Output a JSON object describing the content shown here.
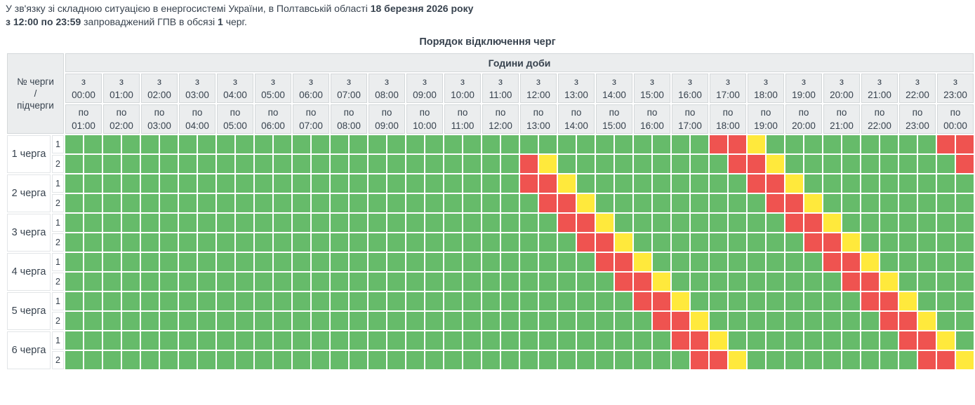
{
  "intro": {
    "part1": "У зв'язку зі складною ситуацією в енергосистемі України, в Полтавській області",
    "date_bold": "18 березня 2026 року",
    "time_bold": "з 12:00 по 23:59",
    "part2": "запроваджений ГПВ в обсязі",
    "count_bold": "1",
    "part3": "черг."
  },
  "title": "Порядок відключення черг",
  "colors": {
    "power_on": "#66bb6a",
    "outage": "#ef5350",
    "possible_outage": "#ffe93c",
    "header_bg": "#ebedee",
    "text": "#37424e"
  },
  "cell_code_map": {
    "g": "power_on",
    "r": "outage",
    "y": "possible_outage"
  },
  "table": {
    "corner": {
      "line1": "№ черги",
      "line2": "/",
      "line3": "підчерги"
    },
    "hours_header": "Години доби",
    "from_label": "з",
    "to_label": "по",
    "hours_from": [
      "00:00",
      "01:00",
      "02:00",
      "03:00",
      "04:00",
      "05:00",
      "06:00",
      "07:00",
      "08:00",
      "09:00",
      "10:00",
      "11:00",
      "12:00",
      "13:00",
      "14:00",
      "15:00",
      "16:00",
      "17:00",
      "18:00",
      "19:00",
      "20:00",
      "21:00",
      "22:00",
      "23:00"
    ],
    "hours_to": [
      "01:00",
      "02:00",
      "03:00",
      "04:00",
      "05:00",
      "06:00",
      "07:00",
      "08:00",
      "09:00",
      "10:00",
      "11:00",
      "12:00",
      "13:00",
      "14:00",
      "15:00",
      "16:00",
      "17:00",
      "18:00",
      "19:00",
      "20:00",
      "21:00",
      "22:00",
      "23:00",
      "00:00"
    ],
    "cells_per_row": 48,
    "queues": [
      {
        "label": "1 черга",
        "subqueues": [
          {
            "label": "1",
            "cells_rle": [
              [
                "g",
                34
              ],
              [
                "r",
                2
              ],
              [
                "y",
                1
              ],
              [
                "g",
                9
              ],
              [
                "r",
                2
              ]
            ]
          },
          {
            "label": "2",
            "cells_rle": [
              [
                "g",
                24
              ],
              [
                "r",
                1
              ],
              [
                "y",
                1
              ],
              [
                "g",
                9
              ],
              [
                "r",
                2
              ],
              [
                "y",
                1
              ],
              [
                "g",
                9
              ],
              [
                "r",
                1
              ]
            ]
          }
        ]
      },
      {
        "label": "2 черга",
        "subqueues": [
          {
            "label": "1",
            "cells_rle": [
              [
                "g",
                24
              ],
              [
                "r",
                2
              ],
              [
                "y",
                1
              ],
              [
                "g",
                9
              ],
              [
                "r",
                2
              ],
              [
                "y",
                1
              ],
              [
                "g",
                9
              ]
            ]
          },
          {
            "label": "2",
            "cells_rle": [
              [
                "g",
                25
              ],
              [
                "r",
                2
              ],
              [
                "y",
                1
              ],
              [
                "g",
                9
              ],
              [
                "r",
                2
              ],
              [
                "y",
                1
              ],
              [
                "g",
                8
              ]
            ]
          }
        ]
      },
      {
        "label": "3 черга",
        "subqueues": [
          {
            "label": "1",
            "cells_rle": [
              [
                "g",
                26
              ],
              [
                "r",
                2
              ],
              [
                "y",
                1
              ],
              [
                "g",
                9
              ],
              [
                "r",
                2
              ],
              [
                "y",
                1
              ],
              [
                "g",
                7
              ]
            ]
          },
          {
            "label": "2",
            "cells_rle": [
              [
                "g",
                27
              ],
              [
                "r",
                2
              ],
              [
                "y",
                1
              ],
              [
                "g",
                9
              ],
              [
                "r",
                2
              ],
              [
                "y",
                1
              ],
              [
                "g",
                6
              ]
            ]
          }
        ]
      },
      {
        "label": "4 черга",
        "subqueues": [
          {
            "label": "1",
            "cells_rle": [
              [
                "g",
                28
              ],
              [
                "r",
                2
              ],
              [
                "y",
                1
              ],
              [
                "g",
                9
              ],
              [
                "r",
                2
              ],
              [
                "y",
                1
              ],
              [
                "g",
                5
              ]
            ]
          },
          {
            "label": "2",
            "cells_rle": [
              [
                "g",
                29
              ],
              [
                "r",
                2
              ],
              [
                "y",
                1
              ],
              [
                "g",
                9
              ],
              [
                "r",
                2
              ],
              [
                "y",
                1
              ],
              [
                "g",
                4
              ]
            ]
          }
        ]
      },
      {
        "label": "5 черга",
        "subqueues": [
          {
            "label": "1",
            "cells_rle": [
              [
                "g",
                30
              ],
              [
                "r",
                2
              ],
              [
                "y",
                1
              ],
              [
                "g",
                9
              ],
              [
                "r",
                2
              ],
              [
                "y",
                1
              ],
              [
                "g",
                3
              ]
            ]
          },
          {
            "label": "2",
            "cells_rle": [
              [
                "g",
                31
              ],
              [
                "r",
                2
              ],
              [
                "y",
                1
              ],
              [
                "g",
                9
              ],
              [
                "r",
                2
              ],
              [
                "y",
                1
              ],
              [
                "g",
                2
              ]
            ]
          }
        ]
      },
      {
        "label": "6 черга",
        "subqueues": [
          {
            "label": "1",
            "cells_rle": [
              [
                "g",
                32
              ],
              [
                "r",
                2
              ],
              [
                "y",
                1
              ],
              [
                "g",
                9
              ],
              [
                "r",
                2
              ],
              [
                "y",
                1
              ],
              [
                "g",
                1
              ]
            ]
          },
          {
            "label": "2",
            "cells_rle": [
              [
                "g",
                33
              ],
              [
                "r",
                2
              ],
              [
                "y",
                1
              ],
              [
                "g",
                9
              ],
              [
                "r",
                2
              ],
              [
                "y",
                1
              ]
            ]
          }
        ]
      }
    ]
  }
}
